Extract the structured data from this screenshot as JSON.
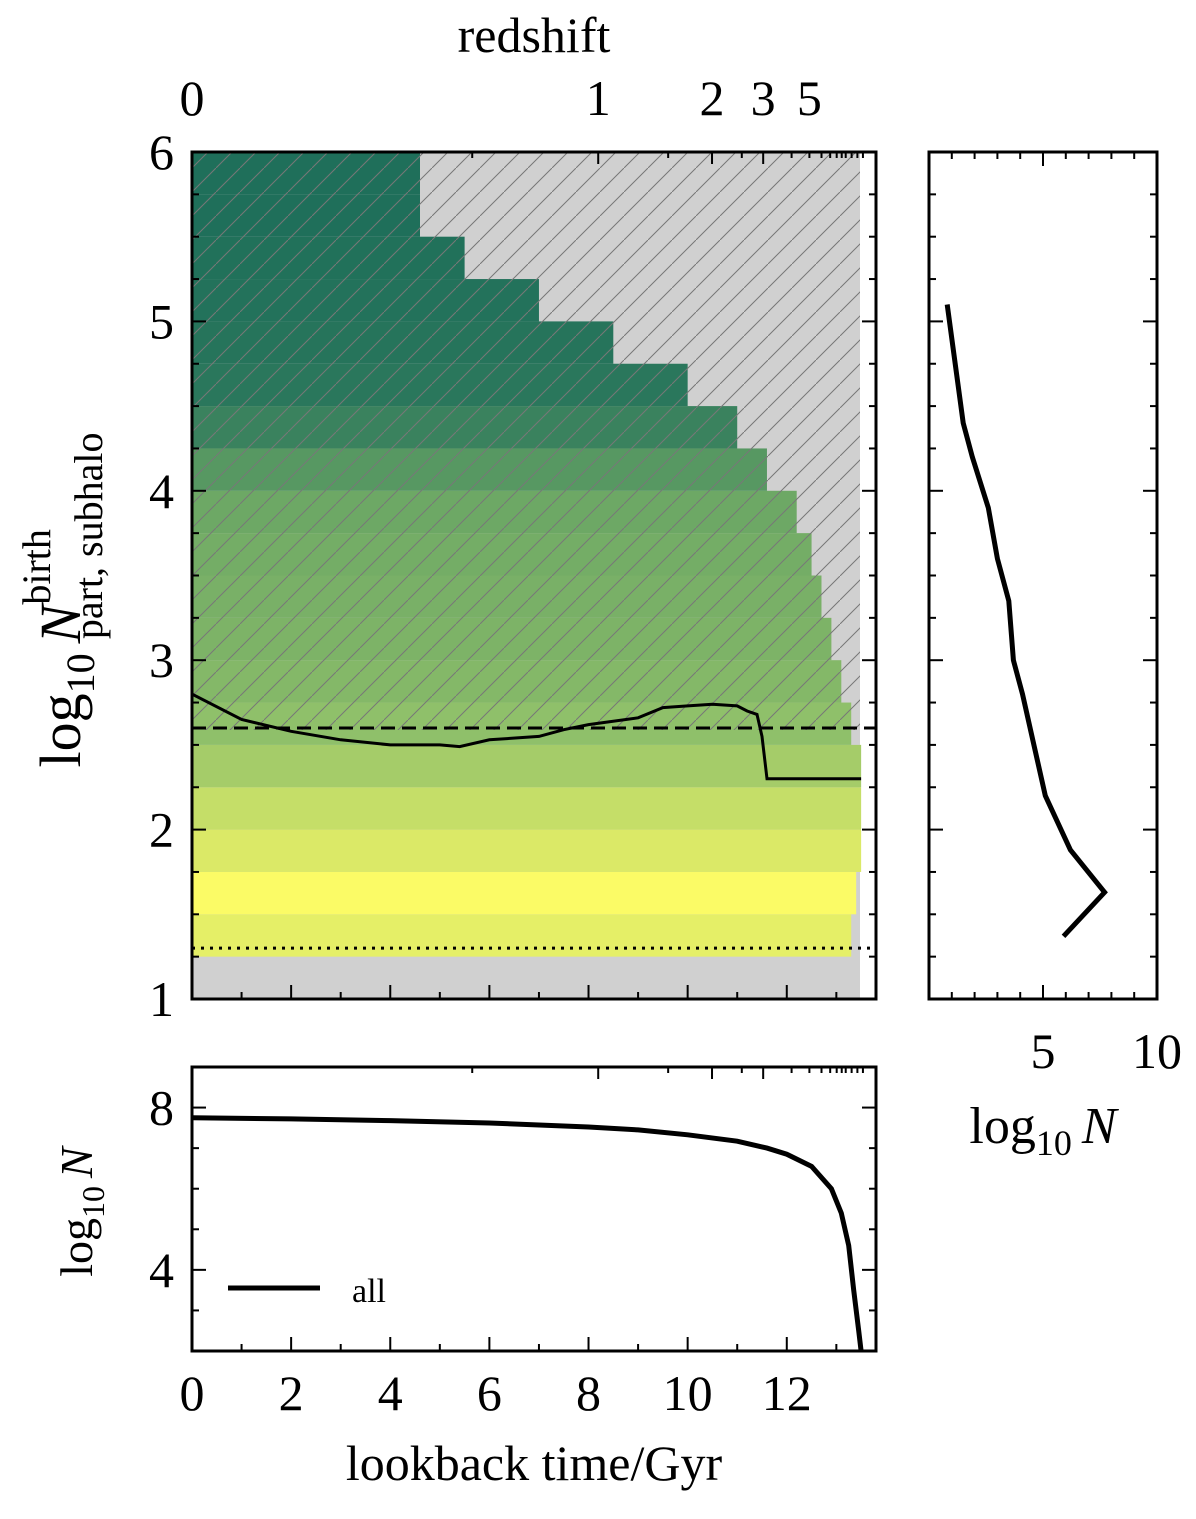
{
  "chart_data": [
    {
      "id": "main",
      "type": "heatmap",
      "title": "",
      "top_axis_label": "redshift",
      "top_ticks": [
        {
          "label": "0",
          "z": 0
        },
        {
          "label": "1",
          "z": 1
        },
        {
          "label": "2",
          "z": 2
        },
        {
          "label": "3",
          "z": 3
        },
        {
          "label": "5",
          "z": 5
        }
      ],
      "xlim": [
        0,
        13.8
      ],
      "ylim": [
        1,
        6
      ],
      "y_ticks": [
        1,
        2,
        3,
        4,
        5,
        6
      ],
      "y_tick_labels": [
        "1",
        "2",
        "3",
        "4",
        "5",
        "6"
      ],
      "ylabel_base": "log",
      "ylabel_sub": "10",
      "ylabel_var": "N",
      "ylabel_sup": "birth",
      "ylabel_subscript": "part, subhalo",
      "colormap": {
        "low": "#1f6f5a",
        "mid": "#8fc06a",
        "high": "#fbfb66"
      },
      "hatched_region": "background (hatched)",
      "heatmap_rows": [
        {
          "y0": 1.25,
          "y1": 1.5,
          "x_end": 13.3,
          "level": 0.9
        },
        {
          "y0": 1.5,
          "y1": 1.75,
          "x_end": 13.4,
          "level": 1.0
        },
        {
          "y0": 1.75,
          "y1": 2.0,
          "x_end": 13.5,
          "level": 0.85
        },
        {
          "y0": 2.0,
          "y1": 2.25,
          "x_end": 13.5,
          "level": 0.75
        },
        {
          "y0": 2.25,
          "y1": 2.5,
          "x_end": 13.5,
          "level": 0.6
        },
        {
          "y0": 2.5,
          "y1": 2.75,
          "x_end": 13.3,
          "level": 0.5
        },
        {
          "y0": 2.75,
          "y1": 3.0,
          "x_end": 13.1,
          "level": 0.45
        },
        {
          "y0": 3.0,
          "y1": 3.25,
          "x_end": 12.9,
          "level": 0.42
        },
        {
          "y0": 3.25,
          "y1": 3.5,
          "x_end": 12.7,
          "level": 0.4
        },
        {
          "y0": 3.5,
          "y1": 3.75,
          "x_end": 12.5,
          "level": 0.38
        },
        {
          "y0": 3.75,
          "y1": 4.0,
          "x_end": 12.2,
          "level": 0.35
        },
        {
          "y0": 4.0,
          "y1": 4.25,
          "x_end": 11.6,
          "level": 0.25
        },
        {
          "y0": 4.25,
          "y1": 4.5,
          "x_end": 11.0,
          "level": 0.12
        },
        {
          "y0": 4.5,
          "y1": 4.75,
          "x_end": 10.0,
          "level": 0.05
        },
        {
          "y0": 4.75,
          "y1": 5.0,
          "x_end": 8.5,
          "level": 0.03
        },
        {
          "y0": 5.0,
          "y1": 5.25,
          "x_end": 7.0,
          "level": 0.02
        },
        {
          "y0": 5.25,
          "y1": 5.5,
          "x_end": 5.5,
          "level": 0.01
        },
        {
          "y0": 5.5,
          "y1": 5.75,
          "x_end": 4.6,
          "level": 0.0
        },
        {
          "y0": 5.75,
          "y1": 6.0,
          "x_end": 4.6,
          "level": 0.0
        }
      ],
      "median_line": {
        "x": [
          0,
          1,
          2,
          3,
          4,
          5,
          5.4,
          6,
          7,
          7.5,
          8,
          9,
          9.5,
          10,
          10.5,
          11,
          11.2,
          11.4,
          11.5,
          11.6,
          13.5
        ],
        "y": [
          2.8,
          2.65,
          2.58,
          2.53,
          2.5,
          2.5,
          2.49,
          2.53,
          2.55,
          2.59,
          2.62,
          2.66,
          2.72,
          2.73,
          2.74,
          2.73,
          2.7,
          2.68,
          2.55,
          2.3,
          2.3
        ]
      },
      "dashed_line_y": 2.6,
      "dotted_line_y": 1.3
    },
    {
      "id": "right",
      "type": "line",
      "xlabel_base": "log",
      "xlabel_sub": "10",
      "xlabel_var": "N",
      "xlim": [
        0,
        10
      ],
      "x_ticks": [
        5,
        10
      ],
      "x_tick_labels": [
        "5",
        "10"
      ],
      "ylim": [
        1,
        6
      ],
      "x": [
        5.9,
        7.7,
        6.2,
        5.1,
        4.6,
        4.1,
        3.7,
        3.5,
        3.0,
        2.6,
        1.9,
        1.5,
        0.8
      ],
      "y": [
        1.37,
        1.63,
        1.88,
        2.2,
        2.5,
        2.8,
        3.0,
        3.35,
        3.6,
        3.9,
        4.2,
        4.4,
        5.1
      ]
    },
    {
      "id": "bottom",
      "type": "line",
      "xlabel": "lookback time/Gyr",
      "xlim": [
        0,
        13.8
      ],
      "x_ticks": [
        0,
        2,
        4,
        6,
        8,
        10,
        12
      ],
      "x_tick_labels": [
        "0",
        "2",
        "4",
        "6",
        "8",
        "10",
        "12"
      ],
      "ylim": [
        2,
        9
      ],
      "y_ticks": [
        4,
        8
      ],
      "y_tick_labels": [
        "4",
        "8"
      ],
      "ylabel_base": "log",
      "ylabel_sub": "10",
      "ylabel_var": "N",
      "legend": {
        "label": "all",
        "position": "lower-left"
      },
      "x": [
        0,
        2,
        4,
        6,
        8,
        9,
        10,
        11,
        11.6,
        12,
        12.5,
        12.9,
        13.1,
        13.25,
        13.35,
        13.45,
        13.5
      ],
      "y": [
        7.75,
        7.72,
        7.68,
        7.62,
        7.52,
        7.45,
        7.33,
        7.17,
        7.0,
        6.85,
        6.55,
        6.0,
        5.4,
        4.6,
        3.5,
        2.5,
        2.0
      ]
    }
  ]
}
